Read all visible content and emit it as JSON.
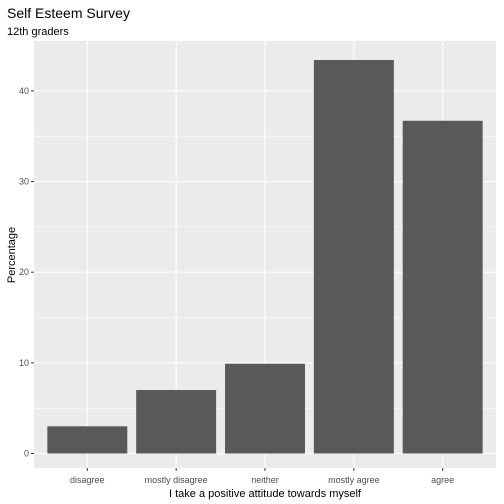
{
  "chart_data": {
    "type": "bar",
    "title": "Self Esteem Survey",
    "subtitle": "12th graders",
    "xlabel": "I take a positive attitude towards myself",
    "ylabel": "Percentage",
    "categories": [
      "disagree",
      "mostly disagree",
      "neither",
      "mostly agree",
      "agree"
    ],
    "values": [
      3.0,
      7.0,
      9.9,
      43.4,
      36.7
    ],
    "ylim": [
      -1.6,
      45.5
    ],
    "yticks": [
      0,
      10,
      20,
      30,
      40
    ],
    "ytick_labels": [
      "0",
      "10",
      "20",
      "30",
      "40"
    ],
    "grid": true,
    "colors": {
      "panel_background": "#ebebeb",
      "grid_major": "#ffffff",
      "bar_fill": "#595959",
      "tick_text": "#4d4d4d",
      "tick_mark": "#333333"
    }
  }
}
